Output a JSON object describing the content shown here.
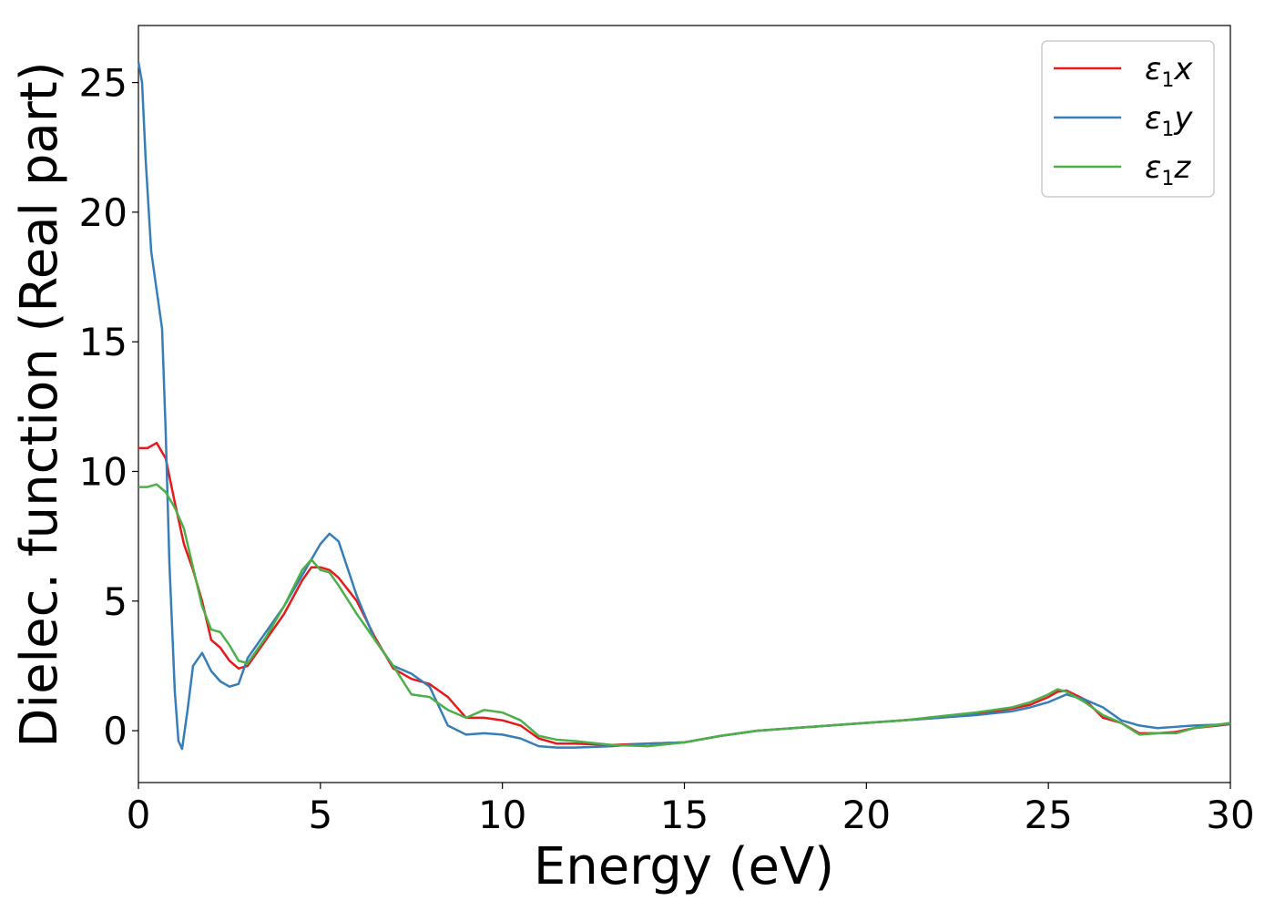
{
  "chart_data": {
    "type": "line",
    "xlabel": "Energy (eV)",
    "ylabel": "Dielec. function (Real part)",
    "xlim": [
      0,
      30
    ],
    "ylim": [
      -2,
      27.2
    ],
    "xticks": [
      0,
      5,
      10,
      15,
      20,
      25,
      30
    ],
    "yticks": [
      0,
      5,
      10,
      15,
      20,
      25
    ],
    "grid": false,
    "legend_position": "top-right",
    "series": [
      {
        "name": "ε1x",
        "legend_base": "ε",
        "legend_sub": "1",
        "legend_var": "x",
        "color": "#e41a1c",
        "x": [
          0,
          0.25,
          0.5,
          0.75,
          1.0,
          1.25,
          1.5,
          1.75,
          2.0,
          2.25,
          2.5,
          2.75,
          3.0,
          3.5,
          4.0,
          4.5,
          4.75,
          5.0,
          5.25,
          5.5,
          6.0,
          6.5,
          7.0,
          7.5,
          8.0,
          8.5,
          9.0,
          9.5,
          10.0,
          10.5,
          11.0,
          11.5,
          12.0,
          13.0,
          14.0,
          15.0,
          16.0,
          17.0,
          18.0,
          19.0,
          20.0,
          21.0,
          22.0,
          23.0,
          24.0,
          24.5,
          25.0,
          25.25,
          25.5,
          26.0,
          26.5,
          27.0,
          27.5,
          28.0,
          28.5,
          29.0,
          30.0
        ],
        "y": [
          10.9,
          10.9,
          11.1,
          10.5,
          8.8,
          7.2,
          6.2,
          5.0,
          3.5,
          3.2,
          2.7,
          2.4,
          2.5,
          3.5,
          4.5,
          5.8,
          6.3,
          6.3,
          6.2,
          5.9,
          5.0,
          3.6,
          2.4,
          2.0,
          1.8,
          1.3,
          0.5,
          0.5,
          0.4,
          0.2,
          -0.3,
          -0.5,
          -0.5,
          -0.55,
          -0.5,
          -0.45,
          -0.2,
          0.0,
          0.1,
          0.2,
          0.3,
          0.4,
          0.5,
          0.65,
          0.85,
          1.0,
          1.3,
          1.5,
          1.55,
          1.2,
          0.5,
          0.3,
          -0.1,
          -0.1,
          -0.05,
          0.1,
          0.25
        ]
      },
      {
        "name": "ε1y",
        "legend_base": "ε",
        "legend_sub": "1",
        "legend_var": "y",
        "color": "#377eb8",
        "x": [
          0,
          0.1,
          0.2,
          0.35,
          0.5,
          0.65,
          0.75,
          0.85,
          1.0,
          1.1,
          1.2,
          1.35,
          1.5,
          1.75,
          2.0,
          2.25,
          2.5,
          2.75,
          3.0,
          3.5,
          4.0,
          4.5,
          5.0,
          5.25,
          5.5,
          6.0,
          6.5,
          7.0,
          7.5,
          8.0,
          8.5,
          9.0,
          9.5,
          10.0,
          10.5,
          11.0,
          11.5,
          12.0,
          13.0,
          14.0,
          15.0,
          16.0,
          17.0,
          18.0,
          19.0,
          20.0,
          21.0,
          22.0,
          23.0,
          24.0,
          24.5,
          25.0,
          25.5,
          26.0,
          26.5,
          27.0,
          27.5,
          28.0,
          28.5,
          29.0,
          30.0
        ],
        "y": [
          25.8,
          25.0,
          22.0,
          18.5,
          17.0,
          15.5,
          11.5,
          6.5,
          1.5,
          -0.4,
          -0.7,
          0.8,
          2.5,
          3.0,
          2.3,
          1.9,
          1.7,
          1.8,
          2.8,
          3.8,
          4.8,
          6.0,
          7.2,
          7.6,
          7.3,
          5.2,
          3.5,
          2.5,
          2.2,
          1.7,
          0.2,
          -0.15,
          -0.1,
          -0.15,
          -0.3,
          -0.6,
          -0.65,
          -0.65,
          -0.6,
          -0.5,
          -0.45,
          -0.2,
          0.0,
          0.1,
          0.2,
          0.3,
          0.4,
          0.5,
          0.6,
          0.75,
          0.9,
          1.1,
          1.4,
          1.2,
          0.9,
          0.4,
          0.2,
          0.1,
          0.15,
          0.2,
          0.25
        ]
      },
      {
        "name": "ε1z",
        "legend_base": "ε",
        "legend_sub": "1",
        "legend_var": "z",
        "color": "#4daf4a",
        "x": [
          0,
          0.25,
          0.5,
          0.75,
          1.0,
          1.25,
          1.5,
          1.75,
          2.0,
          2.25,
          2.5,
          2.75,
          3.0,
          3.5,
          4.0,
          4.5,
          4.75,
          5.0,
          5.25,
          5.5,
          6.0,
          6.5,
          7.0,
          7.5,
          8.0,
          8.5,
          9.0,
          9.5,
          10.0,
          10.5,
          11.0,
          11.5,
          12.0,
          13.0,
          14.0,
          15.0,
          16.0,
          17.0,
          18.0,
          19.0,
          20.0,
          21.0,
          22.0,
          23.0,
          24.0,
          24.5,
          25.0,
          25.25,
          25.5,
          26.0,
          26.5,
          27.0,
          27.5,
          28.0,
          28.5,
          29.0,
          30.0
        ],
        "y": [
          9.4,
          9.4,
          9.5,
          9.2,
          8.6,
          7.8,
          6.3,
          4.8,
          3.9,
          3.8,
          3.3,
          2.7,
          2.6,
          3.6,
          4.8,
          6.2,
          6.6,
          6.2,
          6.1,
          5.6,
          4.5,
          3.5,
          2.5,
          1.4,
          1.3,
          0.8,
          0.5,
          0.8,
          0.7,
          0.4,
          -0.2,
          -0.35,
          -0.4,
          -0.55,
          -0.6,
          -0.45,
          -0.2,
          0.0,
          0.1,
          0.2,
          0.3,
          0.4,
          0.55,
          0.7,
          0.9,
          1.1,
          1.4,
          1.6,
          1.5,
          1.1,
          0.6,
          0.3,
          -0.15,
          -0.1,
          -0.1,
          0.1,
          0.3
        ]
      }
    ]
  }
}
